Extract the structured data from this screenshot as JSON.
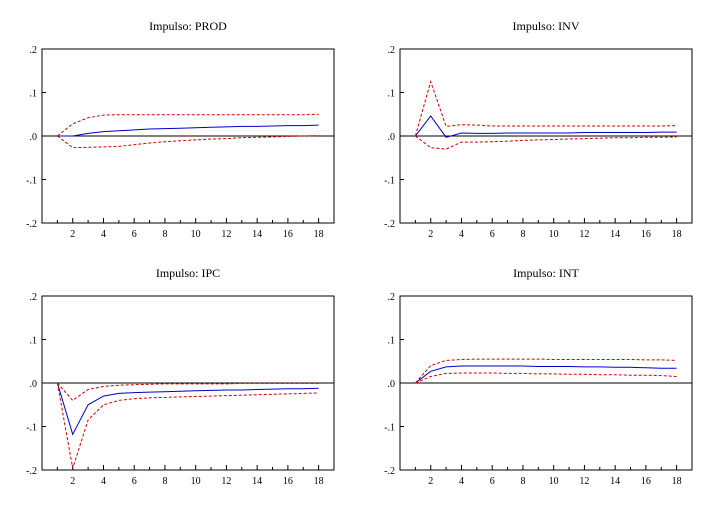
{
  "chart_data": [
    {
      "type": "line",
      "title": "Impulso: PROD",
      "x": [
        1,
        2,
        3,
        4,
        5,
        6,
        7,
        8,
        9,
        10,
        11,
        12,
        13,
        14,
        15,
        16,
        17,
        18
      ],
      "xticks": [
        "2",
        "4",
        "6",
        "8",
        "10",
        "12",
        "14",
        "16",
        "18"
      ],
      "xlim": [
        0,
        19
      ],
      "ylim": [
        -0.2,
        0.2
      ],
      "yticks": [
        ".2",
        ".1",
        ".0",
        "-.1",
        "-.2"
      ],
      "series": [
        {
          "role": "response",
          "color": "#0000c8",
          "style": "solid",
          "values": [
            0.0,
            0.0,
            0.006,
            0.01,
            0.012,
            0.014,
            0.016,
            0.017,
            0.018,
            0.019,
            0.02,
            0.021,
            0.022,
            0.022,
            0.023,
            0.024,
            0.024,
            0.025
          ]
        },
        {
          "role": "upper",
          "color": "#d00000",
          "style": "dashed",
          "values": [
            0.0,
            0.028,
            0.042,
            0.048,
            0.049,
            0.049,
            0.049,
            0.049,
            0.049,
            0.049,
            0.049,
            0.049,
            0.049,
            0.049,
            0.049,
            0.049,
            0.049,
            0.05
          ]
        },
        {
          "role": "lower",
          "color": "#d00000",
          "style": "dashed",
          "values": [
            0.0,
            -0.027,
            -0.026,
            -0.025,
            -0.024,
            -0.02,
            -0.016,
            -0.013,
            -0.011,
            -0.009,
            -0.007,
            -0.006,
            -0.004,
            -0.003,
            -0.002,
            -0.001,
            0.0,
            0.001
          ]
        }
      ]
    },
    {
      "type": "line",
      "title": "Impulso: INV",
      "x": [
        1,
        2,
        3,
        4,
        5,
        6,
        7,
        8,
        9,
        10,
        11,
        12,
        13,
        14,
        15,
        16,
        17,
        18
      ],
      "xticks": [
        "2",
        "4",
        "6",
        "8",
        "10",
        "12",
        "14",
        "16",
        "18"
      ],
      "xlim": [
        0,
        19
      ],
      "ylim": [
        -0.2,
        0.2
      ],
      "yticks": [
        ".2",
        ".1",
        ".0",
        "-.1",
        "-.2"
      ],
      "series": [
        {
          "role": "response",
          "color": "#0000c8",
          "style": "solid",
          "values": [
            0.0,
            0.046,
            -0.003,
            0.007,
            0.006,
            0.006,
            0.007,
            0.007,
            0.007,
            0.007,
            0.007,
            0.008,
            0.008,
            0.008,
            0.008,
            0.008,
            0.009,
            0.009
          ]
        },
        {
          "role": "upper",
          "color": "#d00000",
          "style": "dashed",
          "values": [
            0.0,
            0.125,
            0.022,
            0.026,
            0.025,
            0.023,
            0.023,
            0.023,
            0.023,
            0.023,
            0.023,
            0.023,
            0.023,
            0.023,
            0.023,
            0.023,
            0.023,
            0.024
          ]
        },
        {
          "role": "lower",
          "color": "#d00000",
          "style": "dashed",
          "values": [
            0.0,
            -0.027,
            -0.03,
            -0.014,
            -0.014,
            -0.013,
            -0.012,
            -0.01,
            -0.009,
            -0.008,
            -0.007,
            -0.006,
            -0.005,
            -0.004,
            -0.004,
            -0.003,
            -0.003,
            -0.002
          ]
        }
      ]
    },
    {
      "type": "line",
      "title": "Impulso: IPC",
      "x": [
        1,
        2,
        3,
        4,
        5,
        6,
        7,
        8,
        9,
        10,
        11,
        12,
        13,
        14,
        15,
        16,
        17,
        18
      ],
      "xticks": [
        "2",
        "4",
        "6",
        "8",
        "10",
        "12",
        "14",
        "16",
        "18"
      ],
      "xlim": [
        0,
        19
      ],
      "ylim": [
        -0.2,
        0.2
      ],
      "yticks": [
        ".2",
        ".1",
        ".0",
        "-.1",
        "-.2"
      ],
      "series": [
        {
          "role": "response",
          "color": "#0000c8",
          "style": "solid",
          "values": [
            0.0,
            -0.118,
            -0.05,
            -0.03,
            -0.024,
            -0.022,
            -0.021,
            -0.02,
            -0.019,
            -0.018,
            -0.017,
            -0.016,
            -0.016,
            -0.015,
            -0.014,
            -0.013,
            -0.013,
            -0.012
          ]
        },
        {
          "role": "upper",
          "color": "#d00000",
          "style": "dashed",
          "values": [
            0.0,
            -0.04,
            -0.015,
            -0.008,
            -0.005,
            -0.004,
            -0.003,
            -0.002,
            -0.002,
            -0.002,
            -0.002,
            -0.002,
            -0.001,
            -0.001,
            -0.001,
            -0.001,
            -0.001,
            -0.001
          ]
        },
        {
          "role": "lower",
          "color": "#d00000",
          "style": "dashed",
          "values": [
            0.0,
            -0.196,
            -0.085,
            -0.05,
            -0.04,
            -0.036,
            -0.034,
            -0.033,
            -0.032,
            -0.031,
            -0.03,
            -0.029,
            -0.028,
            -0.027,
            -0.026,
            -0.025,
            -0.024,
            -0.023
          ]
        }
      ]
    },
    {
      "type": "line",
      "title": "Impulso: INT",
      "x": [
        1,
        2,
        3,
        4,
        5,
        6,
        7,
        8,
        9,
        10,
        11,
        12,
        13,
        14,
        15,
        16,
        17,
        18
      ],
      "xticks": [
        "2",
        "4",
        "6",
        "8",
        "10",
        "12",
        "14",
        "16",
        "18"
      ],
      "xlim": [
        0,
        19
      ],
      "ylim": [
        -0.2,
        0.2
      ],
      "yticks": [
        ".2",
        ".1",
        ".0",
        "-.1",
        "-.2"
      ],
      "series": [
        {
          "role": "response",
          "color": "#0000c8",
          "style": "solid",
          "values": [
            0.0,
            0.027,
            0.037,
            0.039,
            0.039,
            0.039,
            0.039,
            0.039,
            0.038,
            0.038,
            0.038,
            0.037,
            0.037,
            0.036,
            0.036,
            0.035,
            0.034,
            0.034
          ]
        },
        {
          "role": "upper",
          "color": "#d00000",
          "style": "dashed",
          "values": [
            0.0,
            0.04,
            0.052,
            0.054,
            0.055,
            0.055,
            0.055,
            0.055,
            0.055,
            0.054,
            0.054,
            0.054,
            0.054,
            0.054,
            0.054,
            0.053,
            0.053,
            0.052
          ]
        },
        {
          "role": "lower",
          "color": "#d00000",
          "style": "dashed",
          "values": [
            0.0,
            0.015,
            0.022,
            0.023,
            0.023,
            0.023,
            0.022,
            0.022,
            0.021,
            0.021,
            0.02,
            0.02,
            0.019,
            0.019,
            0.018,
            0.018,
            0.017,
            0.015
          ]
        }
      ]
    }
  ]
}
